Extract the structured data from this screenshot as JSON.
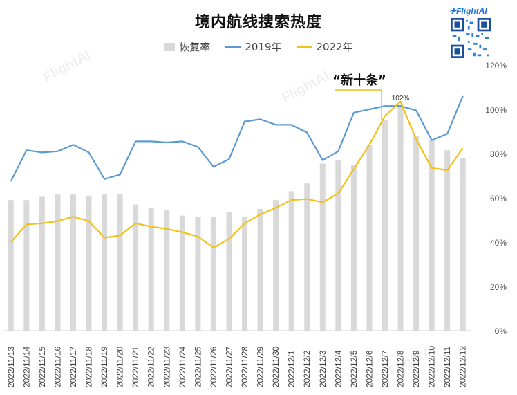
{
  "header": {
    "brand": "FlightAI",
    "qr_icon": "qr-code-icon"
  },
  "watermarks": [
    "FlightAI",
    "FlightAI",
    "FlightAI"
  ],
  "colors": {
    "bar": "#d9d9d9",
    "line2019": "#5b9bd5",
    "line2022": "#f2c219",
    "annotation": "#f2c219"
  },
  "chart_data": {
    "type": "bar",
    "title": "境内航线搜索热度",
    "categories": [
      "2022/11/13",
      "2022/11/14",
      "2022/11/15",
      "2022/11/16",
      "2022/11/17",
      "2022/11/18",
      "2022/11/19",
      "2022/11/20",
      "2022/11/21",
      "2022/11/22",
      "2022/11/23",
      "2022/11/24",
      "2022/11/25",
      "2022/11/26",
      "2022/11/27",
      "2022/11/28",
      "2022/11/29",
      "2022/11/30",
      "2022/12/1",
      "2022/12/2",
      "2022/12/3",
      "2022/12/4",
      "2022/12/5",
      "2022/12/6",
      "2022/12/7",
      "2022/12/8",
      "2022/12/9",
      "2022/12/10",
      "2022/12/11",
      "2022/12/12"
    ],
    "series": [
      {
        "name": "恢复率",
        "type": "bar",
        "values": [
          59,
          59,
          60.5,
          61.5,
          61.5,
          61,
          61.5,
          61.5,
          57,
          55.5,
          54.5,
          52,
          51.5,
          51.5,
          53.5,
          51.5,
          55,
          59,
          63,
          66.5,
          75.5,
          77,
          75,
          84,
          95,
          102,
          88,
          86,
          81.5,
          78
        ]
      },
      {
        "name": "2019年",
        "type": "line",
        "values": [
          67.5,
          81.5,
          80.5,
          81,
          84,
          80.5,
          68.5,
          70.5,
          85.5,
          85.5,
          85,
          85.5,
          83,
          74,
          77.5,
          94.5,
          95.5,
          93,
          93,
          89.5,
          77,
          81,
          98.5,
          100,
          101.5,
          101.5,
          99.5,
          86,
          89,
          106
        ]
      },
      {
        "name": "2022年",
        "type": "line",
        "values": [
          40,
          48,
          48.5,
          49.5,
          51.5,
          49.5,
          42,
          43,
          48.5,
          47,
          46,
          44.5,
          42.5,
          37.5,
          41.5,
          48.5,
          52.5,
          55.5,
          59,
          59.5,
          58,
          62,
          73,
          84,
          97,
          103.5,
          86.5,
          73.5,
          72.5,
          82.5
        ]
      }
    ],
    "y_axis": {
      "position": "right",
      "ylim": [
        0,
        120
      ],
      "ticks": [
        "0%",
        "20%",
        "40%",
        "60%",
        "80%",
        "100%",
        "120%"
      ]
    },
    "grid": false,
    "legend": "top-center",
    "annotations": [
      {
        "text": "“新十条”",
        "category": "2022/12/7"
      },
      {
        "text": "102%",
        "category": "2022/12/8"
      }
    ]
  }
}
